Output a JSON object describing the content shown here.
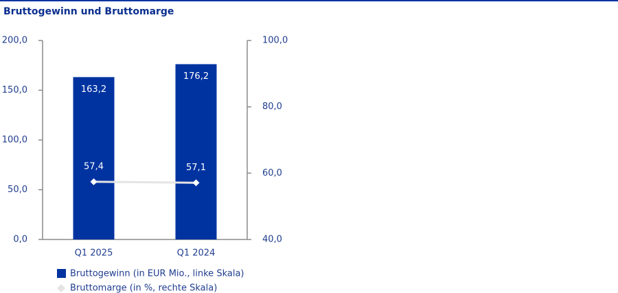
{
  "chart_data": {
    "type": "bar",
    "title": "Bruttogewinn und Bruttomarge",
    "categories": [
      "Q1 2025",
      "Q1 2024"
    ],
    "series": [
      {
        "name": "Bruttogewinn (in EUR Mio., linke Skala)",
        "type": "bar",
        "color": "#0033a0",
        "values": [
          163.2,
          176.2
        ],
        "value_labels": [
          "163,2",
          "176,2"
        ]
      },
      {
        "name": "Bruttomarge (in %, rechte Skala)",
        "type": "line",
        "axis": "y2",
        "color": "#e4e4e4",
        "values": [
          57.4,
          57.1
        ],
        "value_labels": [
          "57,4",
          "57,1"
        ]
      }
    ],
    "ylim": [
      0,
      200
    ],
    "yticks": [
      {
        "value": 0,
        "label": "0,0"
      },
      {
        "value": 50,
        "label": "50,0"
      },
      {
        "value": 100,
        "label": "100,0"
      },
      {
        "value": 150,
        "label": "150,0"
      },
      {
        "value": 200,
        "label": "200,0"
      }
    ],
    "y2lim": [
      40,
      100
    ],
    "y2ticks": [
      {
        "value": 40,
        "label": "40,0"
      },
      {
        "value": 60,
        "label": "60,0"
      },
      {
        "value": 80,
        "label": "80,0"
      },
      {
        "value": 100,
        "label": "100,0"
      }
    ]
  }
}
